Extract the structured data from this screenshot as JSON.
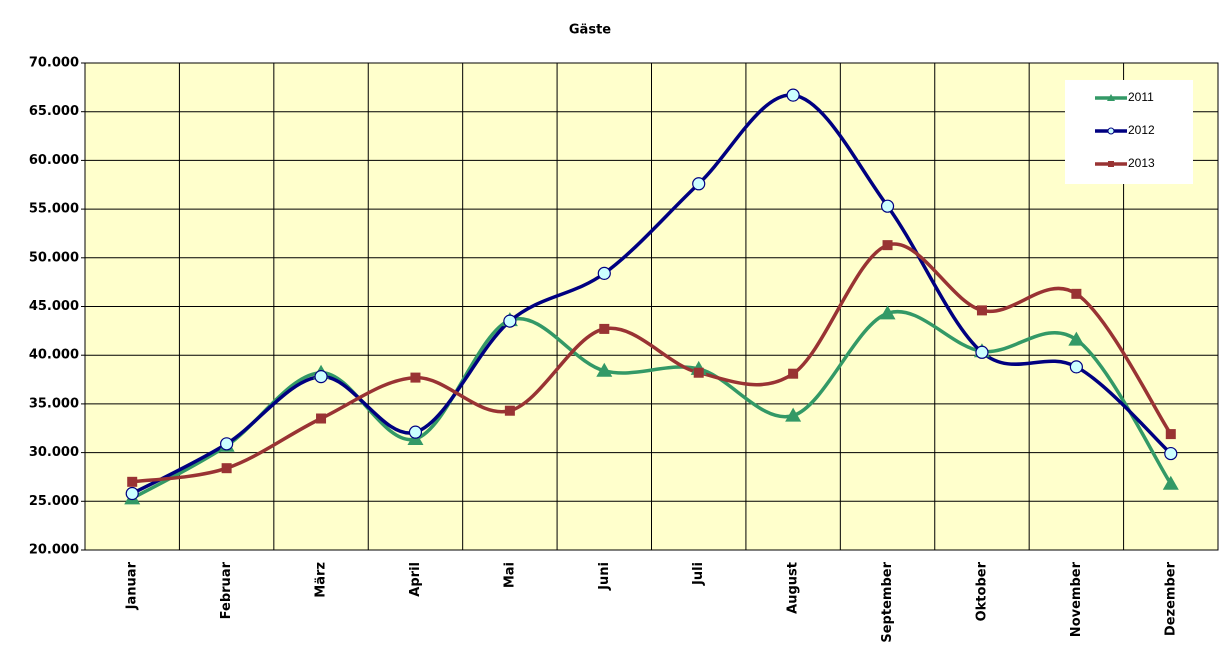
{
  "chart_data": {
    "type": "line",
    "title": "Gäste",
    "categories": [
      "Januar",
      "Februar",
      "März",
      "April",
      "Mai",
      "Juni",
      "Juli",
      "August",
      "September",
      "Oktober",
      "November",
      "Dezember"
    ],
    "series": [
      {
        "name": "2011",
        "color": "#339966",
        "marker": "triangle",
        "values": [
          25300,
          30700,
          38200,
          31400,
          43600,
          38400,
          38600,
          33800,
          44300,
          40400,
          41600,
          26800
        ]
      },
      {
        "name": "2012",
        "color": "#000080",
        "marker": "circle",
        "values": [
          25800,
          30900,
          37800,
          32100,
          43500,
          48400,
          57600,
          66700,
          55300,
          40300,
          38800,
          29900
        ]
      },
      {
        "name": "2013",
        "color": "#993333",
        "marker": "square",
        "values": [
          27000,
          28400,
          33500,
          37700,
          34300,
          42700,
          38200,
          38100,
          51300,
          44600,
          46300,
          31900
        ]
      }
    ],
    "ylim": [
      20000,
      70000
    ],
    "yticks": [
      {
        "value": 20000,
        "label": "20.000"
      },
      {
        "value": 25000,
        "label": "25.000"
      },
      {
        "value": 30000,
        "label": "30.000"
      },
      {
        "value": 35000,
        "label": "35.000"
      },
      {
        "value": 40000,
        "label": "40.000"
      },
      {
        "value": 45000,
        "label": "45.000"
      },
      {
        "value": 50000,
        "label": "50.000"
      },
      {
        "value": 55000,
        "label": "55.000"
      },
      {
        "value": 60000,
        "label": "60.000"
      },
      {
        "value": 65000,
        "label": "65.000"
      },
      {
        "value": 70000,
        "label": "70.000"
      }
    ],
    "grid": true,
    "smooth": true,
    "legend": "top-right"
  }
}
